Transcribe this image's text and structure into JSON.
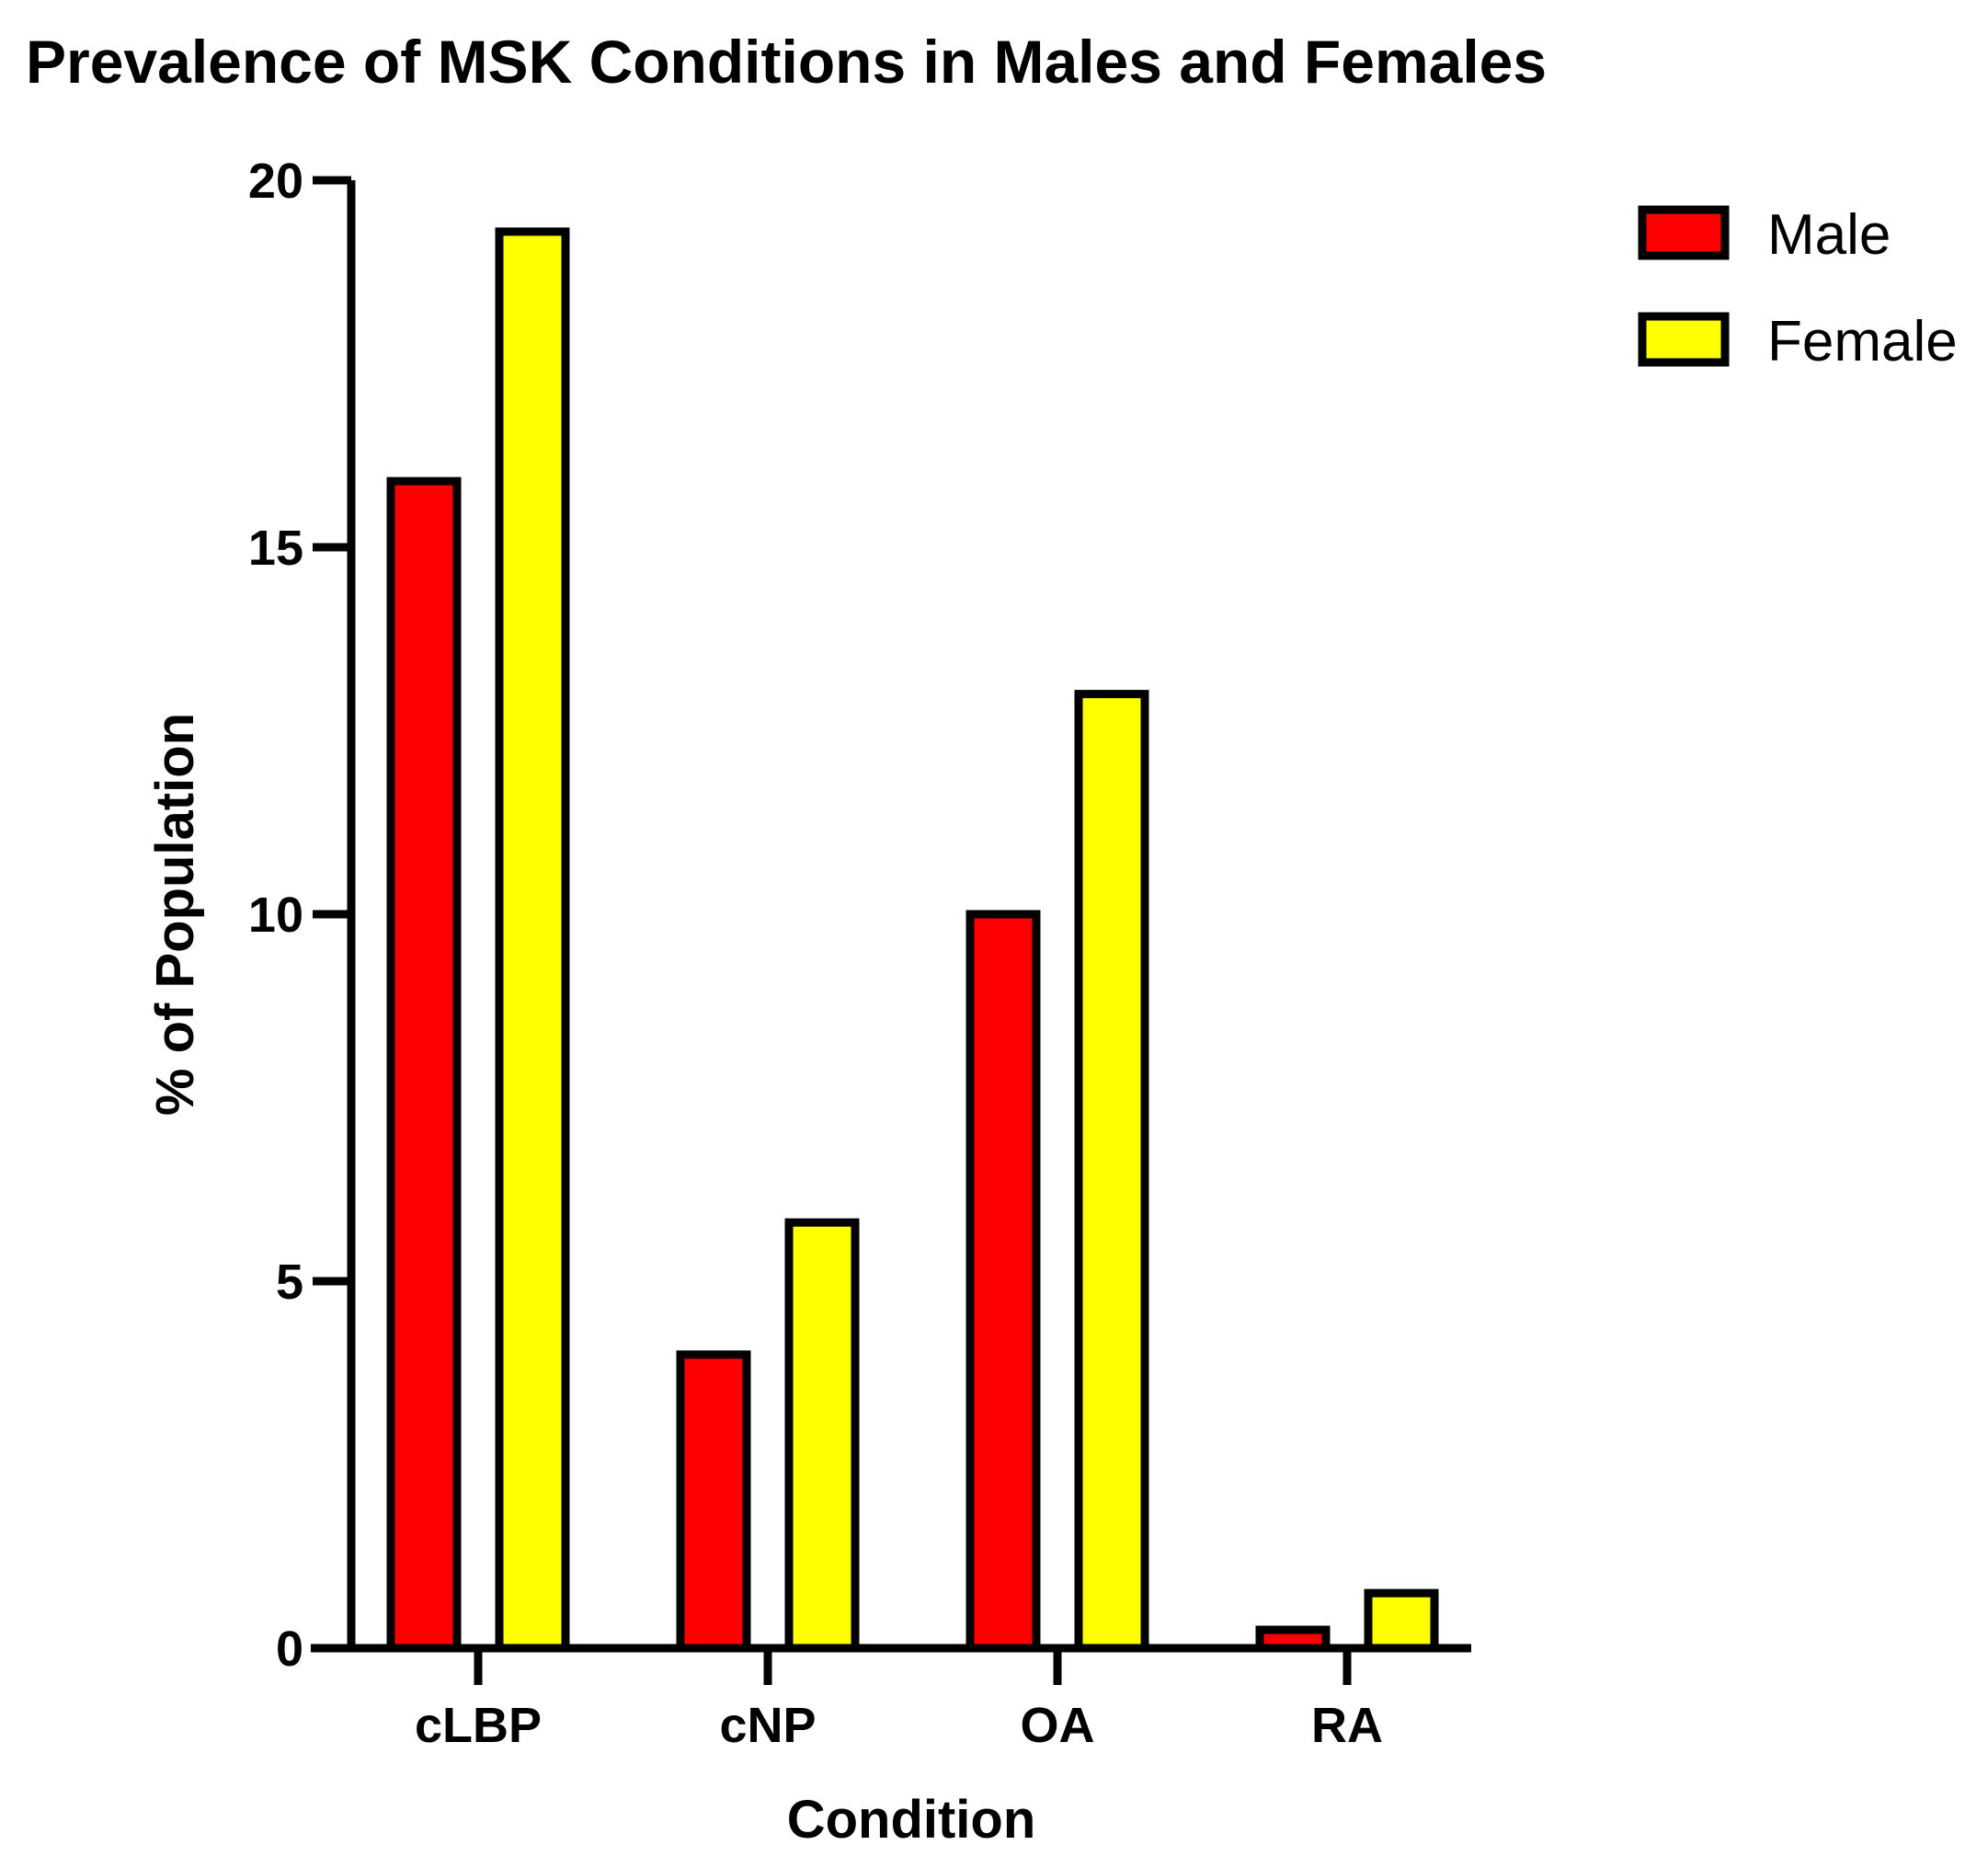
{
  "chart_data": {
    "type": "bar",
    "title": "Prevalence of MSK Conditions in Males and Females",
    "xlabel": "Condition",
    "ylabel": "% of Population",
    "categories": [
      "cLBP",
      "cNP",
      "OA",
      "RA"
    ],
    "series": [
      {
        "name": "Male",
        "color": "#ff0000",
        "values": [
          15.9,
          4.0,
          10.0,
          0.25
        ]
      },
      {
        "name": "Female",
        "color": "#ffff00",
        "values": [
          19.3,
          5.8,
          13.0,
          0.75
        ]
      }
    ],
    "ylim": [
      0,
      20
    ],
    "yticks": [
      "0",
      "5",
      "10",
      "15",
      "20"
    ],
    "grid": false,
    "legend_position": "top-right",
    "bar_outline_color": "#000000"
  }
}
